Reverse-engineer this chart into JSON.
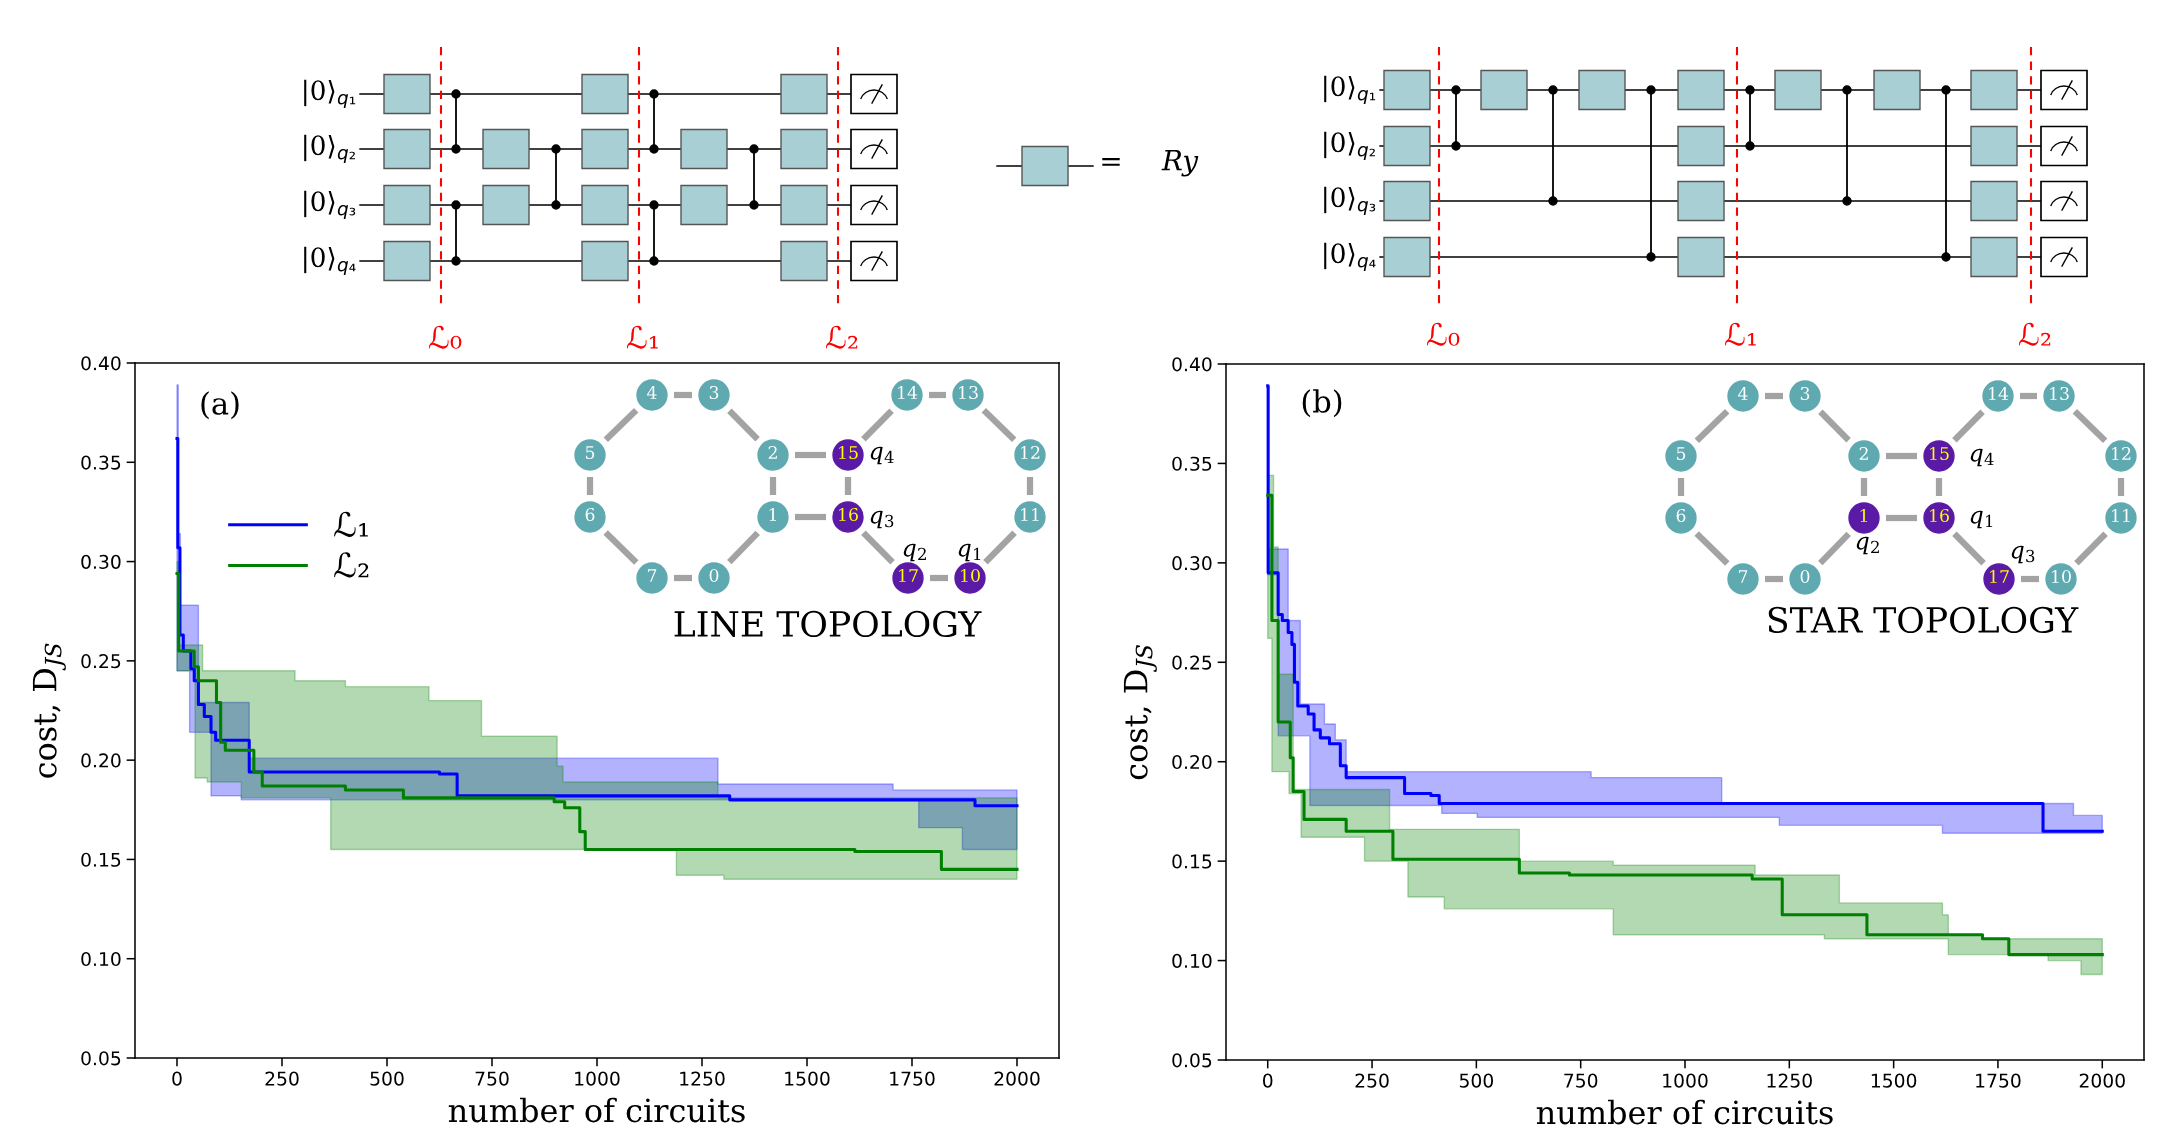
{
  "chart_data": [
    {
      "type": "step",
      "xlabel": "number of circuits",
      "ylabel": "cost, D$_{JS}$",
      "xlim": [
        -100,
        2100
      ],
      "ylim": [
        0.05,
        0.4
      ],
      "xticks": [
        0,
        250,
        500,
        750,
        1000,
        1250,
        1500,
        1750,
        2000
      ],
      "yticks": [
        0.05,
        {
          "value": 0.1,
          "label": "0.10"
        },
        0.15,
        {
          "value": 0.2,
          "label": "0.20"
        },
        0.25,
        {
          "value": 0.3,
          "label": "0.30"
        },
        0.35,
        {
          "value": 0.4,
          "label": "0.40"
        }
      ],
      "legend": "top left",
      "annotations": [
        "(a)",
        "LINE TOPOLOGY",
        "0",
        "1",
        "2",
        "3",
        "4",
        "5",
        "6",
        "7",
        "10",
        "11",
        "12",
        "13",
        "14",
        "15",
        "16",
        "17",
        "q$_{1}$",
        "q$_{2}$",
        "q$_{3}$",
        "q$_{4}$",
        "|0⟩$_{q₁}$",
        "|0⟩$_{q₂}$",
        "|0⟩$_{q₃}$",
        "|0⟩$_{q₄}$",
        "ℒ₀",
        "ℒ₁",
        "ℒ₂",
        "=",
        "Ry"
      ],
      "series": [
        {
          "name": "ℒ₁",
          "color": "#0000ff",
          "x": [
            0,
            2,
            3,
            7,
            8,
            15,
            30,
            33,
            41,
            51,
            65,
            81,
            92,
            153,
            172,
            625,
            667,
            1288,
            1316,
            1705,
            1766,
            1870,
            1900,
            2000
          ],
          "values": [
            0.362,
            0.307,
            0.307,
            0.263,
            0.263,
            0.255,
            0.255,
            0.246,
            0.24,
            0.228,
            0.222,
            0.214,
            0.21,
            0.21,
            0.194,
            0.193,
            0.182,
            0.182,
            0.18,
            0.18,
            0.18,
            0.18,
            0.177,
            0.177
          ],
          "upper": [
            0.389,
            0.389,
            0.314,
            0.314,
            0.278,
            0.278,
            0.278,
            0.278,
            0.278,
            0.229,
            0.229,
            0.229,
            0.229,
            0.229,
            0.201,
            0.201,
            0.201,
            0.188,
            0.188,
            0.185,
            0.185,
            0.185,
            0.185,
            0.185
          ],
          "lower": [
            0.245,
            0.245,
            0.245,
            0.245,
            0.245,
            0.245,
            0.214,
            0.214,
            0.214,
            0.214,
            0.214,
            0.182,
            0.182,
            0.18,
            0.18,
            0.18,
            0.18,
            0.18,
            0.18,
            0.18,
            0.166,
            0.155,
            0.155,
            0.155
          ]
        },
        {
          "name": "ℒ₂",
          "color": "#008000",
          "x": [
            0,
            4,
            41,
            43,
            51,
            61,
            72,
            94,
            104,
            115,
            153,
            183,
            203,
            281,
            366,
            401,
            539,
            600,
            725,
            898,
            905,
            919,
            923,
            959,
            972,
            1189,
            1288,
            1302,
            1614,
            1820,
            2000
          ],
          "values": [
            0.294,
            0.255,
            0.247,
            0.247,
            0.24,
            0.24,
            0.24,
            0.229,
            0.209,
            0.205,
            0.205,
            0.194,
            0.187,
            0.187,
            0.187,
            0.185,
            0.181,
            0.181,
            0.181,
            0.179,
            0.179,
            0.179,
            0.176,
            0.164,
            0.155,
            0.155,
            0.155,
            0.155,
            0.154,
            0.145,
            0.145
          ],
          "upper": [
            0.3,
            0.258,
            0.258,
            0.258,
            0.258,
            0.245,
            0.245,
            0.245,
            0.245,
            0.245,
            0.245,
            0.245,
            0.245,
            0.24,
            0.24,
            0.237,
            0.237,
            0.23,
            0.212,
            0.212,
            0.197,
            0.189,
            0.189,
            0.189,
            0.189,
            0.189,
            0.181,
            0.181,
            0.181,
            0.181,
            0.181
          ],
          "lower": [
            0.245,
            0.245,
            0.245,
            0.191,
            0.191,
            0.191,
            0.189,
            0.189,
            0.189,
            0.189,
            0.181,
            0.181,
            0.181,
            0.181,
            0.155,
            0.155,
            0.155,
            0.155,
            0.155,
            0.155,
            0.155,
            0.155,
            0.155,
            0.155,
            0.155,
            0.142,
            0.142,
            0.14,
            0.14,
            0.14,
            0.14
          ]
        }
      ]
    },
    {
      "type": "step",
      "xlabel": "number of circuits",
      "ylabel": "cost, D$_{JS}$",
      "xlim": [
        -100,
        2100
      ],
      "ylim": [
        0.05,
        0.4
      ],
      "xticks": [
        0,
        250,
        500,
        750,
        1000,
        1250,
        1500,
        1750,
        2000
      ],
      "yticks": [
        0.05,
        {
          "value": 0.1,
          "label": "0.10"
        },
        0.15,
        {
          "value": 0.2,
          "label": "0.20"
        },
        0.25,
        {
          "value": 0.3,
          "label": "0.30"
        },
        0.35,
        {
          "value": 0.4,
          "label": "0.40"
        }
      ],
      "annotations": [
        "(b)",
        "STAR TOPOLOGY",
        "0",
        "1",
        "2",
        "3",
        "4",
        "5",
        "6",
        "7",
        "10",
        "11",
        "12",
        "13",
        "14",
        "15",
        "16",
        "17",
        "q$_{1}$",
        "q$_{2}$",
        "q$_{3}$",
        "q$_{4}$",
        "|0⟩$_{q₁}$",
        "|0⟩$_{q₂}$",
        "|0⟩$_{q₃}$",
        "|0⟩$_{q₄}$",
        "ℒ₀",
        "ℒ₁",
        "ℒ₂"
      ],
      "series": [
        {
          "color": "#0000ff",
          "x": [
            0,
            1,
            25,
            35,
            49,
            58,
            64,
            72,
            78,
            97,
            101,
            111,
            126,
            136,
            148,
            162,
            174,
            188,
            328,
            391,
            411,
            417,
            502,
            775,
            1088,
            1226,
            1617,
            1858,
            1931,
            2000
          ],
          "values": [
            0.389,
            0.295,
            0.274,
            0.271,
            0.265,
            0.259,
            0.24,
            0.228,
            0.228,
            0.224,
            0.224,
            0.216,
            0.212,
            0.212,
            0.209,
            0.209,
            0.198,
            0.192,
            0.184,
            0.183,
            0.179,
            0.179,
            0.179,
            0.179,
            0.179,
            0.179,
            0.179,
            0.165,
            0.165,
            0.165
          ],
          "upper": [
            0.389,
            0.307,
            0.307,
            0.307,
            0.271,
            0.271,
            0.271,
            0.271,
            0.229,
            0.229,
            0.229,
            0.229,
            0.229,
            0.219,
            0.219,
            0.211,
            0.211,
            0.195,
            0.195,
            0.195,
            0.195,
            0.195,
            0.195,
            0.192,
            0.179,
            0.179,
            0.179,
            0.179,
            0.173,
            0.173
          ],
          "lower": [
            0.294,
            0.294,
            0.213,
            0.213,
            0.213,
            0.213,
            0.213,
            0.213,
            0.213,
            0.213,
            0.178,
            0.178,
            0.178,
            0.178,
            0.178,
            0.178,
            0.178,
            0.178,
            0.178,
            0.178,
            0.178,
            0.174,
            0.172,
            0.172,
            0.172,
            0.168,
            0.164,
            0.164,
            0.164,
            0.164
          ]
        },
        {
          "color": "#008000",
          "x": [
            0,
            10,
            14,
            25,
            51,
            54,
            61,
            80,
            87,
            188,
            232,
            292,
            300,
            336,
            423,
            603,
            723,
            828,
            1161,
            1168,
            1233,
            1334,
            1370,
            1436,
            1617,
            1631,
            1713,
            1776,
            1870,
            1949,
            2000
          ],
          "values": [
            0.334,
            0.271,
            0.271,
            0.22,
            0.22,
            0.202,
            0.185,
            0.185,
            0.171,
            0.165,
            0.165,
            0.165,
            0.151,
            0.151,
            0.151,
            0.144,
            0.143,
            0.143,
            0.141,
            0.141,
            0.123,
            0.123,
            0.123,
            0.113,
            0.113,
            0.113,
            0.111,
            0.103,
            0.103,
            0.103,
            0.103
          ],
          "upper": [
            0.344,
            0.344,
            0.308,
            0.244,
            0.244,
            0.244,
            0.186,
            0.186,
            0.186,
            0.186,
            0.186,
            0.166,
            0.166,
            0.166,
            0.166,
            0.15,
            0.15,
            0.148,
            0.148,
            0.143,
            0.143,
            0.143,
            0.129,
            0.129,
            0.123,
            0.113,
            0.111,
            0.111,
            0.111,
            0.111,
            0.111
          ],
          "lower": [
            0.262,
            0.195,
            0.195,
            0.195,
            0.184,
            0.184,
            0.184,
            0.162,
            0.162,
            0.162,
            0.15,
            0.15,
            0.15,
            0.132,
            0.126,
            0.126,
            0.126,
            0.113,
            0.113,
            0.113,
            0.113,
            0.111,
            0.111,
            0.111,
            0.111,
            0.103,
            0.103,
            0.103,
            0.1,
            0.093,
            0.093
          ]
        }
      ]
    }
  ]
}
